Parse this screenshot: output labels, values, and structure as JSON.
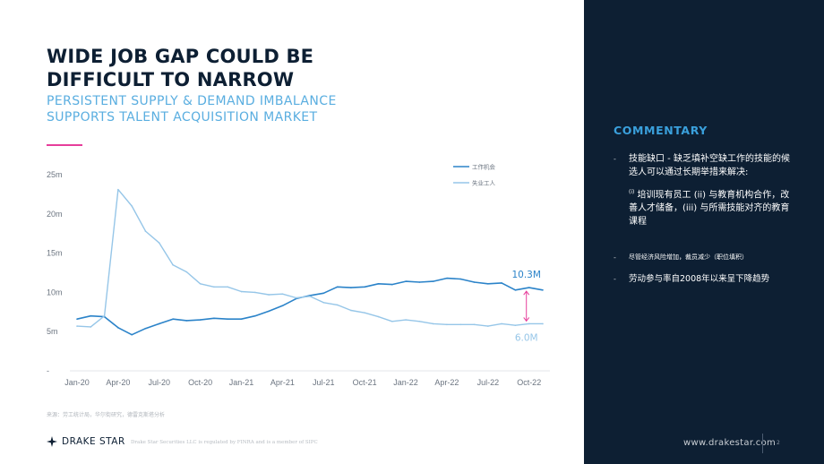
{
  "title_lines": [
    "WIDE JOB GAP COULD BE",
    "DIFFICULT TO NARROW"
  ],
  "subtitle_lines": [
    "PERSISTENT SUPPLY & DEMAND IMBALANCE",
    "SUPPORTS TALENT ACQUISITION MARKET"
  ],
  "colors": {
    "navy": "#0d1f33",
    "accent_blue": "#3aa0dc",
    "subtitle_blue": "#5aaee0",
    "series_openings": "#2b83c9",
    "series_unemployed": "#96c6e8",
    "gap_marker": "#e63e9b"
  },
  "chart_data": {
    "type": "line",
    "x": [
      "Jan-20",
      "Feb-20",
      "Mar-20",
      "Apr-20",
      "May-20",
      "Jun-20",
      "Jul-20",
      "Aug-20",
      "Sep-20",
      "Oct-20",
      "Nov-20",
      "Dec-20",
      "Jan-21",
      "Feb-21",
      "Mar-21",
      "Apr-21",
      "May-21",
      "Jun-21",
      "Jul-21",
      "Aug-21",
      "Sep-21",
      "Oct-21",
      "Nov-21",
      "Dec-21",
      "Jan-22",
      "Feb-22",
      "Mar-22",
      "Apr-22",
      "May-22",
      "Jun-22",
      "Jul-22",
      "Aug-22",
      "Sep-22",
      "Oct-22",
      "Nov-22"
    ],
    "tick_labels": [
      "Jan-20",
      "Apr-20",
      "Jul-20",
      "Oct-20",
      "Jan-21",
      "Apr-21",
      "Jul-21",
      "Oct-21",
      "Jan-22",
      "Apr-22",
      "Jul-22",
      "Oct-22"
    ],
    "y_ticks": [
      {
        "value": 0,
        "label": "-"
      },
      {
        "value": 5,
        "label": "5m"
      },
      {
        "value": 10,
        "label": "10m"
      },
      {
        "value": 15,
        "label": "15m"
      },
      {
        "value": 20,
        "label": "20m"
      },
      {
        "value": 25,
        "label": "25m"
      }
    ],
    "ylim": [
      0,
      25
    ],
    "series": [
      {
        "name": "工作机会",
        "color": "#2b83c9",
        "values": [
          6.6,
          7.0,
          6.9,
          5.5,
          4.6,
          5.4,
          6.0,
          6.6,
          6.4,
          6.5,
          6.7,
          6.6,
          6.6,
          7.0,
          7.6,
          8.3,
          9.2,
          9.6,
          9.9,
          10.7,
          10.6,
          10.7,
          11.1,
          11.0,
          11.4,
          11.3,
          11.4,
          11.8,
          11.7,
          11.3,
          11.1,
          11.2,
          10.3,
          10.6,
          10.3
        ]
      },
      {
        "name": "失业工人",
        "color": "#96c6e8",
        "values": [
          5.7,
          5.6,
          7.0,
          23.1,
          21.0,
          17.8,
          16.3,
          13.5,
          12.6,
          11.1,
          10.7,
          10.7,
          10.1,
          10.0,
          9.7,
          9.8,
          9.3,
          9.5,
          8.7,
          8.4,
          7.7,
          7.4,
          6.9,
          6.3,
          6.5,
          6.3,
          6.0,
          5.9,
          5.9,
          5.9,
          5.7,
          6.0,
          5.8,
          6.0,
          6.0
        ]
      }
    ],
    "annotations": [
      {
        "text": "10.3M",
        "series": 0,
        "value": 10.3
      },
      {
        "text": "6.0M",
        "series": 1,
        "value": 6.0
      }
    ],
    "legend_position": "top-right"
  },
  "source_note": "来源：劳工统计局，华尔街研究，德雷克斯塔分析",
  "logo_text": "DRAKE STAR",
  "disclaimer": "Drake Star Securities LLC is regulated by FINRA and is a member of SIPC",
  "commentary": {
    "title": "COMMENTARY",
    "bullet_marker": "-",
    "bullet1_lead": "技能缺口 - 缺乏填补空缺工作的技能的候选人可以通过长期举措来解决:",
    "bullet1_sup": "(i)",
    "bullet1_detail": " 培训现有员工 (ii) 与教育机构合作，改善人才储备，(iii) 与所需技能对齐的教育课程",
    "bullet2": "尽管经济风险增加，裁员减少（职位填积）",
    "bullet3": "劳动参与率自2008年以来呈下降趋势"
  },
  "website": "www.drakestar.com",
  "page_number": "2"
}
